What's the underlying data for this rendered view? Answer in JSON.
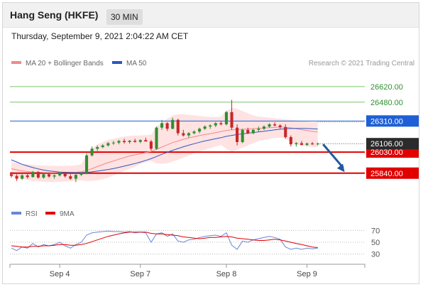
{
  "header": {
    "title": "Hang Seng (HKFE)",
    "timeframe": "30 MIN"
  },
  "datetime": "Thursday, September 9, 2021 2:04:22 AM CET",
  "legend": {
    "ma20_bb": "MA 20 + Bollinger Bands",
    "ma50": "MA 50",
    "credit": "Research © 2021 Trading Central"
  },
  "indicator_legend": {
    "rsi": "RSI",
    "ma9": "9MA"
  },
  "colors": {
    "up": "#2f8f2f",
    "down": "#c62828",
    "ma50": "#2b57c2",
    "bb_fill": "#ffd8d8",
    "resistance": "#7cc36b",
    "support": "#e00000",
    "pivot": "#1f5fd6",
    "rsi": "#6a86d8",
    "ma9": "#e00000",
    "arrow": "#1f5a9e"
  },
  "chart_data": {
    "type": "candlestick",
    "price_ylim": [
      25640,
      26760
    ],
    "x_labels": [
      {
        "label": "Sep 4",
        "index": 9
      },
      {
        "label": "Sep 7",
        "index": 24
      },
      {
        "label": "Sep 8",
        "index": 40
      },
      {
        "label": "Sep 9",
        "index": 55
      }
    ],
    "levels": [
      {
        "label": "26620.00",
        "value": 26620,
        "kind": "resistance"
      },
      {
        "label": "26480.00",
        "value": 26480,
        "kind": "resistance"
      },
      {
        "label": "26310.00",
        "value": 26310,
        "kind": "pivot"
      },
      {
        "label": "26030.00",
        "value": 26030,
        "kind": "support"
      },
      {
        "label": "25840.00",
        "value": 25840,
        "kind": "support"
      }
    ],
    "last_price": {
      "label": "26106.00",
      "value": 26106
    },
    "projection": {
      "from_index": 58,
      "from_value": 26100,
      "to_index": 62,
      "to_value": 25850
    },
    "candles": [
      [
        25830,
        25850,
        25800,
        25815
      ],
      [
        25815,
        25830,
        25770,
        25790
      ],
      [
        25790,
        25830,
        25780,
        25820
      ],
      [
        25820,
        25840,
        25790,
        25805
      ],
      [
        25805,
        25860,
        25800,
        25850
      ],
      [
        25850,
        25860,
        25790,
        25800
      ],
      [
        25800,
        25840,
        25790,
        25830
      ],
      [
        25830,
        25845,
        25800,
        25810
      ],
      [
        25810,
        25830,
        25790,
        25820
      ],
      [
        25820,
        25850,
        25810,
        25845
      ],
      [
        25845,
        25850,
        25800,
        25812
      ],
      [
        25812,
        25830,
        25780,
        25790
      ],
      [
        25790,
        25830,
        25760,
        25825
      ],
      [
        25825,
        25850,
        25815,
        25840
      ],
      [
        25840,
        26020,
        25830,
        26000
      ],
      [
        26000,
        26080,
        25990,
        26060
      ],
      [
        26060,
        26090,
        26040,
        26075
      ],
      [
        26075,
        26100,
        26065,
        26090
      ],
      [
        26090,
        26120,
        26080,
        26110
      ],
      [
        26110,
        26130,
        26095,
        26115
      ],
      [
        26115,
        26140,
        26100,
        26130
      ],
      [
        26130,
        26150,
        26105,
        26120
      ],
      [
        26120,
        26140,
        26105,
        26132
      ],
      [
        26132,
        26150,
        26115,
        26122
      ],
      [
        26122,
        26145,
        26110,
        26138
      ],
      [
        26138,
        26160,
        26130,
        26125
      ],
      [
        26125,
        26140,
        26040,
        26060
      ],
      [
        26060,
        26260,
        26050,
        26250
      ],
      [
        26250,
        26320,
        26230,
        26290
      ],
      [
        26290,
        26300,
        26220,
        26240
      ],
      [
        26240,
        26340,
        26235,
        26320
      ],
      [
        26320,
        26330,
        26180,
        26200
      ],
      [
        26200,
        26230,
        26170,
        26180
      ],
      [
        26180,
        26210,
        26160,
        26200
      ],
      [
        26200,
        26225,
        26190,
        26215
      ],
      [
        26215,
        26250,
        26200,
        26240
      ],
      [
        26240,
        26270,
        26230,
        26260
      ],
      [
        26260,
        26280,
        26240,
        26270
      ],
      [
        26270,
        26300,
        26255,
        26290
      ],
      [
        26290,
        26310,
        26270,
        26280
      ],
      [
        26280,
        26400,
        26270,
        26390
      ],
      [
        26390,
        26500,
        26230,
        26250
      ],
      [
        26250,
        26280,
        26090,
        26120
      ],
      [
        26120,
        26240,
        26110,
        26230
      ],
      [
        26230,
        26250,
        26190,
        26200
      ],
      [
        26200,
        26240,
        26190,
        26230
      ],
      [
        26230,
        26260,
        26215,
        26240
      ],
      [
        26240,
        26270,
        26230,
        26260
      ],
      [
        26260,
        26290,
        26250,
        26280
      ],
      [
        26280,
        26300,
        26260,
        26270
      ],
      [
        26270,
        26280,
        26240,
        26255
      ],
      [
        26255,
        26280,
        26150,
        26165
      ],
      [
        26165,
        26180,
        26080,
        26100
      ],
      [
        26100,
        26120,
        26080,
        26110
      ],
      [
        26110,
        26130,
        26090,
        26095
      ],
      [
        26095,
        26115,
        26085,
        26108
      ],
      [
        26108,
        26120,
        26095,
        26100
      ],
      [
        26100,
        26115,
        26090,
        26106
      ]
    ],
    "ma20": [
      25880,
      25870,
      25860,
      25855,
      25850,
      25848,
      25846,
      25845,
      25845,
      25846,
      25846,
      25847,
      25848,
      25852,
      25865,
      25880,
      25900,
      25918,
      25935,
      25950,
      25965,
      25980,
      25995,
      26005,
      26015,
      26025,
      26035,
      26055,
      26075,
      26095,
      26115,
      26130,
      26145,
      26158,
      26168,
      26178,
      26188,
      26195,
      26205,
      26215,
      26225,
      26230,
      26232,
      26235,
      26238,
      26240,
      26243,
      26246,
      26250,
      26252,
      26255,
      26254,
      26248,
      26240,
      26232,
      26224,
      26216,
      26210
    ],
    "bb_upper": [
      25940,
      25930,
      25925,
      25920,
      25915,
      25910,
      25908,
      25906,
      25905,
      25905,
      25906,
      25907,
      25910,
      25920,
      26000,
      26060,
      26100,
      26120,
      26140,
      26150,
      26160,
      26170,
      26175,
      26178,
      26180,
      26182,
      26185,
      26260,
      26300,
      26330,
      26360,
      26370,
      26370,
      26365,
      26360,
      26355,
      26350,
      26345,
      26345,
      26350,
      26400,
      26430,
      26420,
      26400,
      26380,
      26360,
      26350,
      26345,
      26340,
      26335,
      26330,
      26325,
      26320,
      26315,
      26310,
      26305,
      26300,
      26300
    ],
    "bb_lower": [
      25810,
      25800,
      25790,
      25780,
      25770,
      25765,
      25762,
      25760,
      25760,
      25762,
      25765,
      25768,
      25770,
      25775,
      25770,
      25770,
      25775,
      25785,
      25800,
      25820,
      25840,
      25860,
      25880,
      25900,
      25920,
      25940,
      25950,
      25930,
      25925,
      25930,
      25945,
      25960,
      25980,
      26000,
      26020,
      26035,
      26050,
      26065,
      26080,
      26095,
      26060,
      26030,
      26050,
      26070,
      26090,
      26110,
      26130,
      26140,
      26150,
      26155,
      26160,
      26150,
      26120,
      26100,
      26090,
      26080,
      26075,
      26075
    ],
    "ma50": [
      25960,
      25940,
      25920,
      25905,
      25890,
      25878,
      25868,
      25860,
      25855,
      25850,
      25848,
      25846,
      25845,
      25845,
      25848,
      25852,
      25858,
      25865,
      25873,
      25882,
      25892,
      25903,
      25915,
      25927,
      25940,
      25955,
      25970,
      25990,
      26010,
      26028,
      26046,
      26062,
      26078,
      26092,
      26105,
      26118,
      26130,
      26140,
      26150,
      26160,
      26172,
      26180,
      26188,
      26194,
      26200,
      26206,
      26212,
      26218,
      26224,
      26230,
      26236,
      26240,
      26242,
      26243,
      26243,
      26242,
      26240,
      26238
    ],
    "rsi": {
      "ylim": [
        20,
        80
      ],
      "ticks": [
        70,
        50,
        30
      ],
      "rsi_values": [
        40,
        36,
        42,
        40,
        48,
        42,
        46,
        44,
        46,
        50,
        44,
        40,
        46,
        50,
        62,
        66,
        67,
        68,
        69,
        68,
        68,
        67,
        68,
        66,
        67,
        66,
        50,
        64,
        66,
        60,
        64,
        52,
        50,
        54,
        55,
        58,
        60,
        61,
        62,
        60,
        66,
        45,
        38,
        52,
        50,
        54,
        56,
        58,
        60,
        58,
        55,
        42,
        38,
        40,
        38,
        40,
        39,
        40
      ],
      "ma9_values": [
        44,
        43,
        42,
        42,
        43,
        43,
        44,
        44,
        45,
        46,
        46,
        45,
        45,
        46,
        48,
        51,
        54,
        57,
        60,
        62,
        64,
        66,
        67,
        67,
        67,
        67,
        65,
        64,
        64,
        63,
        62,
        61,
        59,
        58,
        57,
        56,
        57,
        58,
        58,
        59,
        60,
        59,
        57,
        56,
        55,
        54,
        53,
        53,
        54,
        55,
        54,
        52,
        50,
        48,
        46,
        44,
        42,
        41
      ]
    }
  }
}
